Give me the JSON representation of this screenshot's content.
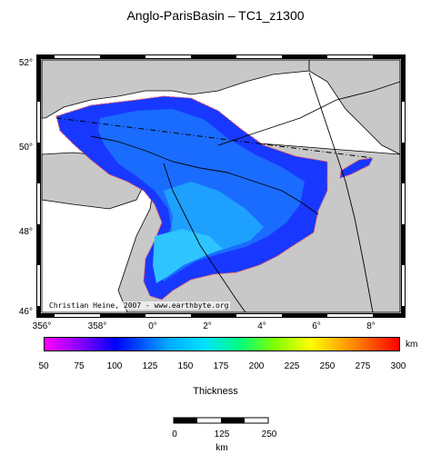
{
  "title": "Anglo-ParisBasin – TC1_z1300",
  "map": {
    "lat_ticks": [
      "52°",
      "50°",
      "48°",
      "46°"
    ],
    "lon_ticks": [
      "356°",
      "358°",
      "0°",
      "2°",
      "4°",
      "6°",
      "8°"
    ],
    "credit": "Christian Heine, 2007 - www.earthbyte.org",
    "land_color": "#c8c8c8",
    "basin_colors": [
      "#1838ff",
      "#1a6cff",
      "#1ea0ff",
      "#2ec4ff"
    ]
  },
  "colorbar": {
    "unit": "km",
    "ticks": [
      "50",
      "75",
      "100",
      "125",
      "150",
      "175",
      "200",
      "225",
      "250",
      "275",
      "300"
    ],
    "label": "Thickness",
    "colors": [
      "#ff00ff",
      "#8800ff",
      "#0000ff",
      "#00aaff",
      "#00e0ff",
      "#00ff80",
      "#80ff00",
      "#ffff00",
      "#ff8000",
      "#ff0000"
    ]
  },
  "scalebar": {
    "ticks": [
      "0",
      "125",
      "250"
    ],
    "unit": "km"
  }
}
